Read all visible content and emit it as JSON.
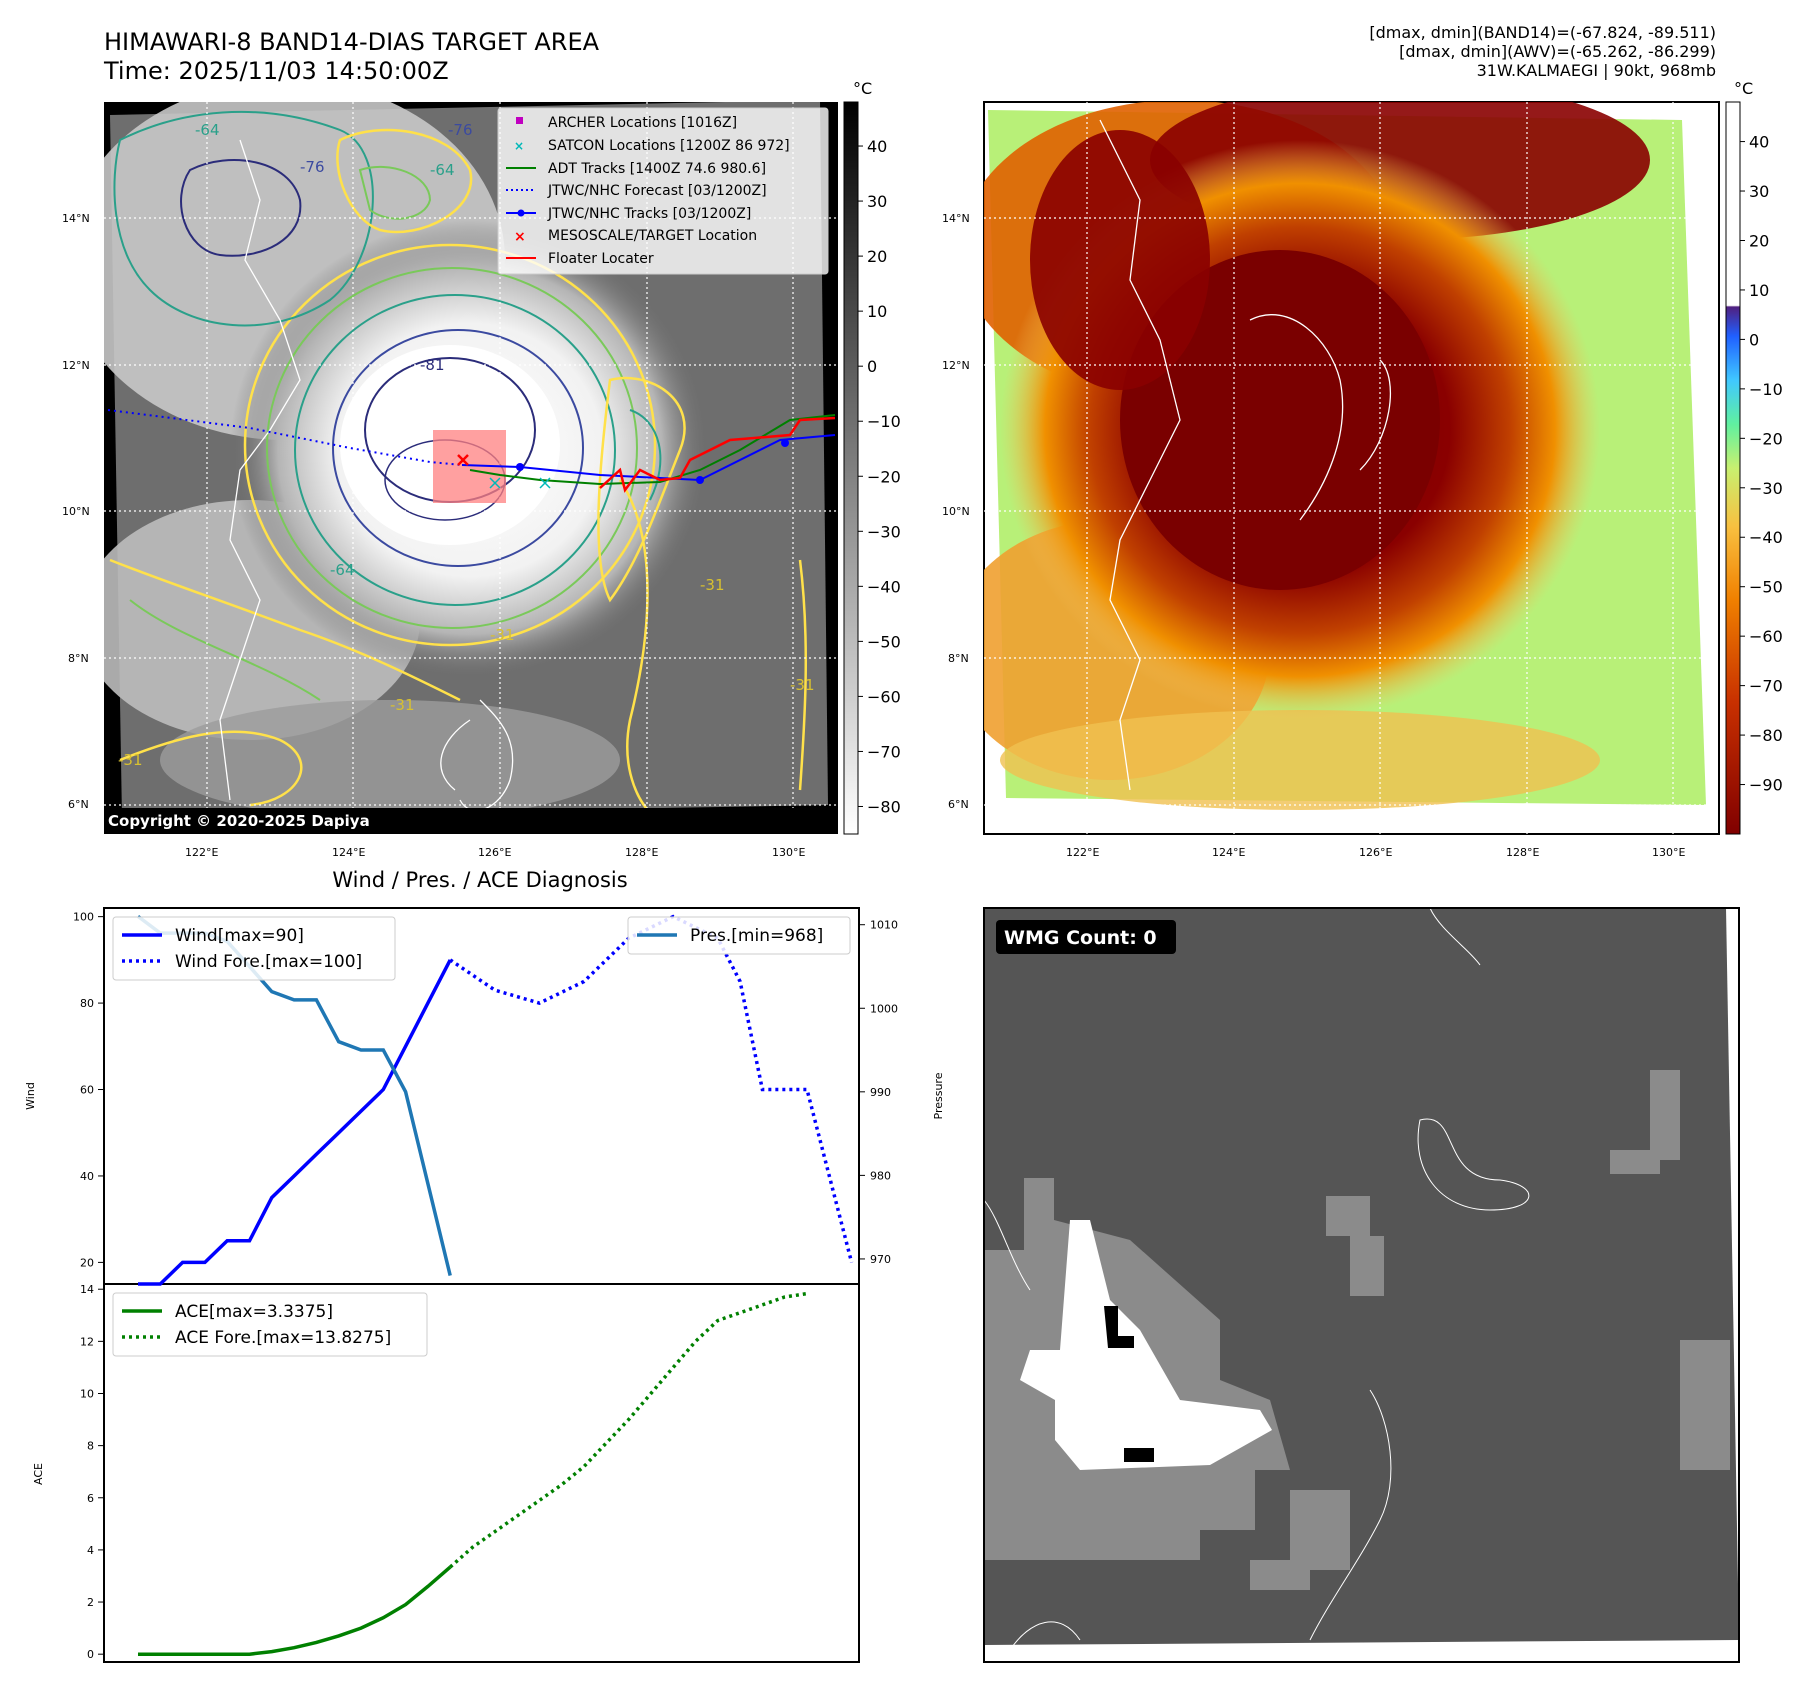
{
  "header": {
    "title_line1": "HIMAWARI-8 BAND14-DIAS TARGET AREA",
    "title_line2": "Time: 2025/11/03 14:50:00Z",
    "stats_line1": "[dmax, dmin](BAND14)=(-67.824, -89.511)",
    "stats_line2": "[dmax, dmin](AWV)=(-65.262, -86.299)",
    "stats_line3": "31W.KALMAEGI | 90kt, 968mb"
  },
  "map_ticks": {
    "lat": [
      "14°N",
      "12°N",
      "10°N",
      "8°N",
      "6°N"
    ],
    "lon": [
      "122°E",
      "124°E",
      "126°E",
      "128°E",
      "130°E"
    ]
  },
  "colorbar_gray": {
    "unit": "°C",
    "ticks": [
      "40",
      "30",
      "20",
      "10",
      "0",
      "−10",
      "−20",
      "−30",
      "−40",
      "−50",
      "−60",
      "−70",
      "−80"
    ]
  },
  "colorbar_heat": {
    "unit": "°C",
    "ticks": [
      "40",
      "30",
      "20",
      "10",
      "0",
      "−10",
      "−20",
      "−30",
      "−40",
      "−50",
      "−60",
      "−70",
      "−80",
      "−90"
    ]
  },
  "legend_map": {
    "items": [
      {
        "label": "ARCHER Locations [1016Z]",
        "color": "#c000c0"
      },
      {
        "label": "SATCON Locations [1200Z 86 972]",
        "color": "#00b8b8"
      },
      {
        "label": "ADT Tracks [1400Z 74.6 980.6]",
        "color": "#008000"
      },
      {
        "label": "JTWC/NHC Forecast [03/1200Z]",
        "color": "#0000ff"
      },
      {
        "label": "JTWC/NHC Tracks [03/1200Z]",
        "color": "#0000ff"
      },
      {
        "label": "MESOSCALE/TARGET Location",
        "color": "#ff0000"
      },
      {
        "label": "Floater Locater",
        "color": "#ff0000"
      }
    ]
  },
  "contour_labels": [
    "-76",
    "-64",
    "-81",
    "-64",
    "-76",
    "-64",
    "-31",
    "-31",
    "-31",
    "-31",
    "-31"
  ],
  "copyright": "Copyright © 2020-2025 Dapiya",
  "wmg": {
    "label": "WMG Count: 0"
  },
  "chart_data": [
    {
      "type": "line",
      "title": "Wind / Pres. / ACE Diagnosis",
      "ylabel": "Wind",
      "y2label": "Pressure",
      "ylim": [
        15,
        102
      ],
      "y2lim": [
        967,
        1012
      ],
      "yticks": [
        "100",
        "80",
        "60",
        "40",
        "20"
      ],
      "y2ticks": [
        "1010",
        "1000",
        "990",
        "980",
        "970"
      ],
      "x": [
        0,
        1,
        2,
        3,
        4,
        5,
        6,
        7,
        8,
        9,
        10,
        11,
        12,
        13,
        14,
        15,
        16,
        17,
        18,
        19,
        20,
        21,
        22,
        23,
        24,
        25,
        26,
        27,
        28,
        29,
        30
      ],
      "series": [
        {
          "name": "Wind[max=90]",
          "style": "solid",
          "color": "#0000ff",
          "points": [
            [
              0,
              15
            ],
            [
              1,
              15
            ],
            [
              2,
              20
            ],
            [
              3,
              20
            ],
            [
              4,
              25
            ],
            [
              5,
              25
            ],
            [
              6,
              35
            ],
            [
              7,
              40
            ],
            [
              8,
              45
            ],
            [
              9,
              50
            ],
            [
              10,
              55
            ],
            [
              11,
              60
            ],
            [
              12,
              70
            ],
            [
              13,
              80
            ],
            [
              14,
              90
            ]
          ]
        },
        {
          "name": "Wind Fore.[max=100]",
          "style": "dotted",
          "color": "#0000ff",
          "points": [
            [
              14,
              90
            ],
            [
              16,
              83
            ],
            [
              18,
              80
            ],
            [
              20,
              85
            ],
            [
              22,
              95
            ],
            [
              24,
              100
            ],
            [
              26,
              95
            ],
            [
              27,
              85
            ],
            [
              28,
              60
            ],
            [
              30,
              60
            ],
            [
              31,
              40
            ],
            [
              32,
              20
            ]
          ]
        },
        {
          "name": "Pres.[min=968]",
          "style": "solid",
          "color": "#1f77b4",
          "axis": "right",
          "points": [
            [
              0,
              1011
            ],
            [
              1,
              1009
            ],
            [
              2,
              1009
            ],
            [
              3,
              1009
            ],
            [
              4,
              1008
            ],
            [
              5,
              1005
            ],
            [
              6,
              1002
            ],
            [
              7,
              1001
            ],
            [
              8,
              1001
            ],
            [
              9,
              996
            ],
            [
              10,
              995
            ],
            [
              11,
              995
            ],
            [
              12,
              990
            ],
            [
              13,
              979
            ],
            [
              14,
              968
            ]
          ]
        }
      ]
    },
    {
      "type": "line",
      "ylabel": "ACE",
      "ylim": [
        -0.3,
        14.2
      ],
      "yticks": [
        "14",
        "12",
        "10",
        "8",
        "6",
        "4",
        "2",
        "0"
      ],
      "series": [
        {
          "name": "ACE[max=3.3375]",
          "style": "solid",
          "color": "#008000",
          "points": [
            [
              0,
              0
            ],
            [
              1,
              0
            ],
            [
              2,
              0
            ],
            [
              3,
              0
            ],
            [
              4,
              0
            ],
            [
              5,
              0
            ],
            [
              6,
              0.1
            ],
            [
              7,
              0.25
            ],
            [
              8,
              0.45
            ],
            [
              9,
              0.7
            ],
            [
              10,
              1.0
            ],
            [
              11,
              1.4
            ],
            [
              12,
              1.9
            ],
            [
              13,
              2.6
            ],
            [
              14,
              3.34
            ]
          ]
        },
        {
          "name": "ACE Fore.[max=13.8275]",
          "style": "dotted",
          "color": "#008000",
          "points": [
            [
              14,
              3.34
            ],
            [
              15,
              4.1
            ],
            [
              16,
              4.7
            ],
            [
              17,
              5.3
            ],
            [
              18,
              5.9
            ],
            [
              19,
              6.5
            ],
            [
              20,
              7.2
            ],
            [
              21,
              8.1
            ],
            [
              22,
              9.0
            ],
            [
              23,
              10.0
            ],
            [
              24,
              11.0
            ],
            [
              25,
              12.0
            ],
            [
              26,
              12.8
            ],
            [
              27,
              13.1
            ],
            [
              28,
              13.4
            ],
            [
              29,
              13.7
            ],
            [
              30,
              13.83
            ]
          ]
        }
      ]
    }
  ]
}
